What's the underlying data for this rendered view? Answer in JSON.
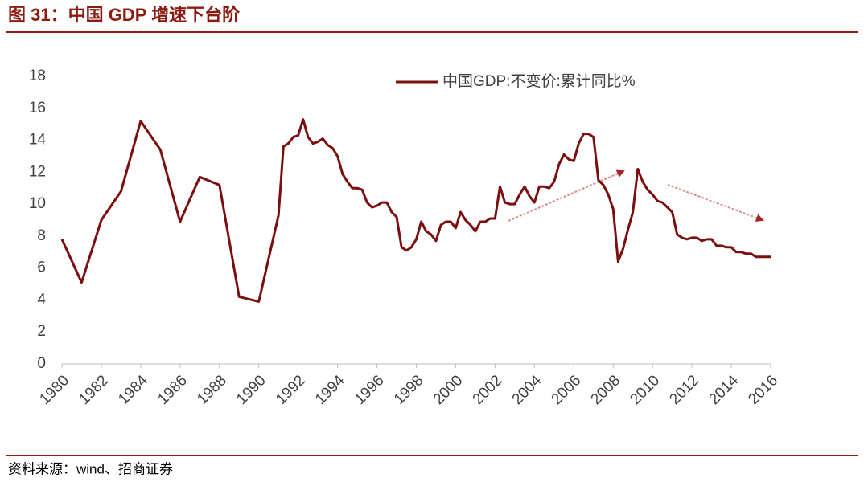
{
  "chart_data": {
    "type": "line",
    "title": "图 31：中国 GDP 增速下台阶",
    "source": "资料来源：wind、招商证券",
    "xlim": [
      1980,
      2016
    ],
    "xticks": [
      1980,
      1982,
      1984,
      1986,
      1988,
      1990,
      1992,
      1994,
      1996,
      1998,
      2000,
      2002,
      2004,
      2006,
      2008,
      2010,
      2012,
      2014,
      2016
    ],
    "ylim": [
      0,
      18
    ],
    "yticks": [
      0,
      2,
      4,
      6,
      8,
      10,
      12,
      14,
      16,
      18
    ],
    "legend": "top-right",
    "series": [
      {
        "name": "中国GDP:不变价:累计同比%",
        "color": "#7b0f0f",
        "x": [
          1980,
          1981,
          1982,
          1983,
          1984,
          1985,
          1986,
          1987,
          1988,
          1989,
          1990,
          1991,
          1991.25,
          1991.5,
          1991.75,
          1992,
          1992.25,
          1992.5,
          1992.75,
          1993,
          1993.25,
          1993.5,
          1993.75,
          1994,
          1994.25,
          1994.5,
          1994.75,
          1995,
          1995.25,
          1995.5,
          1995.75,
          1996,
          1996.25,
          1996.5,
          1996.75,
          1997,
          1997.25,
          1997.5,
          1997.75,
          1998,
          1998.25,
          1998.5,
          1998.75,
          1999,
          1999.25,
          1999.5,
          1999.75,
          2000,
          2000.25,
          2000.5,
          2000.75,
          2001,
          2001.25,
          2001.5,
          2001.75,
          2002,
          2002.25,
          2002.5,
          2002.75,
          2003,
          2003.25,
          2003.5,
          2003.75,
          2004,
          2004.25,
          2004.5,
          2004.75,
          2005,
          2005.25,
          2005.5,
          2005.75,
          2006,
          2006.25,
          2006.5,
          2006.75,
          2007,
          2007.25,
          2007.5,
          2007.75,
          2008,
          2008.25,
          2008.5,
          2008.75,
          2009,
          2009.25,
          2009.5,
          2009.75,
          2010,
          2010.25,
          2010.5,
          2010.75,
          2011,
          2011.25,
          2011.5,
          2011.75,
          2012,
          2012.25,
          2012.5,
          2012.75,
          2013,
          2013.25,
          2013.5,
          2013.75,
          2014,
          2014.25,
          2014.5,
          2014.75,
          2015,
          2015.25,
          2015.5,
          2015.75,
          2016
        ],
        "values": [
          7.8,
          5.1,
          9.0,
          10.8,
          15.2,
          13.4,
          8.9,
          11.7,
          11.2,
          4.2,
          3.9,
          9.3,
          13.6,
          13.8,
          14.2,
          14.3,
          15.3,
          14.2,
          13.8,
          13.9,
          14.1,
          13.7,
          13.5,
          13.0,
          11.9,
          11.4,
          11.0,
          11.0,
          10.9,
          10.1,
          9.8,
          9.9,
          10.1,
          10.1,
          9.5,
          9.2,
          7.3,
          7.1,
          7.3,
          7.8,
          8.9,
          8.3,
          8.1,
          7.7,
          8.7,
          8.9,
          8.9,
          8.5,
          9.5,
          9.0,
          8.7,
          8.3,
          8.9,
          8.9,
          9.1,
          9.1,
          11.1,
          10.1,
          10.0,
          10.0,
          10.6,
          11.1,
          10.5,
          10.1,
          11.1,
          11.1,
          11.0,
          11.4,
          12.5,
          13.1,
          12.8,
          12.7,
          13.8,
          14.4,
          14.4,
          14.2,
          11.5,
          11.2,
          10.6,
          9.7,
          6.4,
          7.2,
          8.4,
          9.5,
          12.2,
          11.4,
          10.9,
          10.6,
          10.2,
          10.1,
          9.8,
          9.5,
          8.1,
          7.9,
          7.8,
          7.9,
          7.9,
          7.7,
          7.8,
          7.8,
          7.4,
          7.4,
          7.3,
          7.3,
          7.0,
          7.0,
          6.9,
          6.9,
          6.7,
          6.7,
          6.7,
          6.7
        ]
      }
    ]
  }
}
